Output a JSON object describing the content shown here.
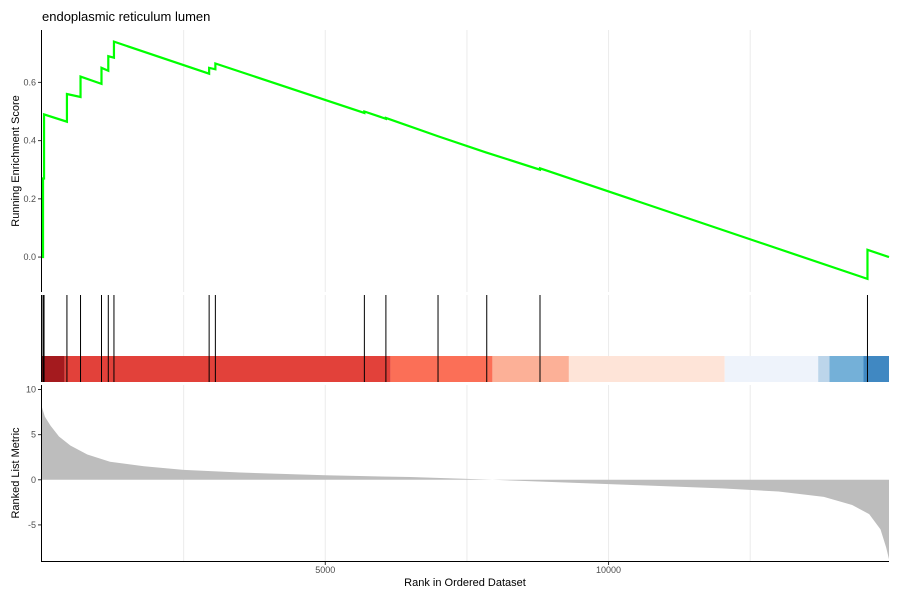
{
  "chart_data": {
    "type": "line",
    "title": "endoplasmic reticulum lumen",
    "xlabel": "Rank in Ordered Dataset",
    "xlim": [
      0,
      14950
    ],
    "x_ticks": [
      {
        "value": 5000,
        "label": "5000"
      },
      {
        "value": 10000,
        "label": "10000"
      }
    ],
    "vertical_gridlines": [
      2500,
      5000,
      7500,
      10000,
      12500
    ],
    "panels": {
      "enrichment": {
        "ylabel": "Running Enrichment Score",
        "ylim": [
          -0.12,
          0.78
        ],
        "y_ticks": [
          {
            "value": 0.0,
            "label": "0.0"
          },
          {
            "value": 0.2,
            "label": "0.2"
          },
          {
            "value": 0.4,
            "label": "0.4"
          },
          {
            "value": 0.6,
            "label": "0.6"
          }
        ],
        "line_color": "#00ff00",
        "series": [
          {
            "points": [
              [
                0,
                0.0
              ],
              [
                18,
                0.0
              ],
              [
                18,
                0.27
              ],
              [
                36,
                0.27
              ],
              [
                36,
                0.49
              ],
              [
                440,
                0.465
              ],
              [
                440,
                0.56
              ],
              [
                680,
                0.55
              ],
              [
                680,
                0.62
              ],
              [
                1050,
                0.595
              ],
              [
                1050,
                0.65
              ],
              [
                1170,
                0.64
              ],
              [
                1170,
                0.69
              ],
              [
                1270,
                0.685
              ],
              [
                1270,
                0.74
              ],
              [
                2950,
                0.63
              ],
              [
                2950,
                0.65
              ],
              [
                3060,
                0.645
              ],
              [
                3060,
                0.665
              ],
              [
                5690,
                0.495
              ],
              [
                5690,
                0.5
              ],
              [
                6070,
                0.475
              ],
              [
                6070,
                0.478
              ],
              [
                6990,
                0.415
              ],
              [
                7830,
                0.36
              ],
              [
                8790,
                0.3
              ],
              [
                8790,
                0.305
              ],
              [
                14570,
                -0.075
              ],
              [
                14570,
                0.025
              ],
              [
                14950,
                0.0
              ]
            ]
          }
        ]
      },
      "hits": {
        "positions": [
          18,
          36,
          440,
          680,
          1050,
          1170,
          1270,
          2950,
          3060,
          5690,
          6070,
          6990,
          7850,
          8790,
          14570
        ],
        "color_band": [
          {
            "start": 0,
            "end": 400,
            "color": "#a41a1e"
          },
          {
            "start": 400,
            "end": 6150,
            "color": "#e2413a"
          },
          {
            "start": 6150,
            "end": 7950,
            "color": "#fb6f57"
          },
          {
            "start": 7950,
            "end": 9300,
            "color": "#fcb097"
          },
          {
            "start": 9300,
            "end": 12050,
            "color": "#fee4d8"
          },
          {
            "start": 12050,
            "end": 13700,
            "color": "#eef3fb"
          },
          {
            "start": 13700,
            "end": 13900,
            "color": "#bcd5ea"
          },
          {
            "start": 13900,
            "end": 14500,
            "color": "#74b0d8"
          },
          {
            "start": 14500,
            "end": 14950,
            "color": "#4088c2"
          }
        ]
      },
      "ranked": {
        "ylabel": "Ranked List Metric",
        "ylim": [
          -9,
          10.5
        ],
        "y_ticks": [
          {
            "value": 10,
            "label": "10"
          },
          {
            "value": 5,
            "label": "5"
          },
          {
            "value": 0,
            "label": "0"
          },
          {
            "value": -5,
            "label": "-5"
          }
        ],
        "fill_color": "#bdbdbd",
        "series": [
          {
            "points": [
              [
                0,
                8.0
              ],
              [
                50,
                7.0
              ],
              [
                150,
                6.0
              ],
              [
                300,
                4.8
              ],
              [
                500,
                3.8
              ],
              [
                800,
                2.8
              ],
              [
                1200,
                2.0
              ],
              [
                1800,
                1.5
              ],
              [
                2500,
                1.1
              ],
              [
                3500,
                0.8
              ],
              [
                5000,
                0.5
              ],
              [
                6500,
                0.3
              ],
              [
                7500,
                0.1
              ],
              [
                7950,
                0.0
              ],
              [
                9000,
                -0.25
              ],
              [
                10500,
                -0.6
              ],
              [
                12000,
                -0.95
              ],
              [
                13000,
                -1.3
              ],
              [
                13800,
                -1.9
              ],
              [
                14300,
                -2.8
              ],
              [
                14600,
                -3.8
              ],
              [
                14800,
                -5.5
              ],
              [
                14900,
                -7.5
              ],
              [
                14950,
                -8.8
              ]
            ]
          }
        ]
      }
    }
  }
}
